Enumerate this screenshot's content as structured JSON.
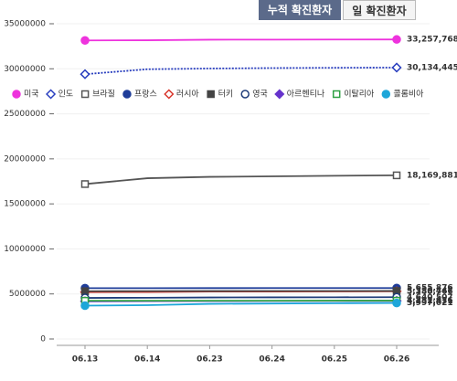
{
  "tabs": [
    "누적 확진환자",
    "일 확진환자"
  ],
  "chart_data": {
    "type": "line",
    "categories": [
      "06.13",
      "06.14",
      "06.23",
      "06.24",
      "06.25",
      "06.26"
    ],
    "ylim": [
      0,
      35000000
    ],
    "yticks": [
      0,
      5000000,
      10000000,
      15000000,
      20000000,
      25000000,
      30000000,
      35000000
    ],
    "grid": true,
    "series": [
      {
        "name": "미국",
        "color": "#ee33dd",
        "marker": "circle",
        "filled": true,
        "dotted": false,
        "values": [
          33150000,
          33170000,
          33230000,
          33240000,
          33250000,
          33257768
        ],
        "value_labels": [
          null,
          null,
          null,
          null,
          null,
          "33,257,768"
        ]
      },
      {
        "name": "인도",
        "color": "#2a3fbf",
        "marker": "diamond",
        "filled": false,
        "dotted": true,
        "values": [
          29400000,
          29950000,
          30030000,
          30080000,
          30110000,
          30134445
        ],
        "value_labels": [
          null,
          null,
          null,
          null,
          null,
          "30,134,445"
        ]
      },
      {
        "name": "브라질",
        "color": "#555555",
        "marker": "square",
        "filled": false,
        "dotted": false,
        "values": [
          17200000,
          17850000,
          18000000,
          18060000,
          18120000,
          18169881
        ],
        "value_labels": [
          null,
          null,
          null,
          null,
          null,
          "18,169,881"
        ]
      },
      {
        "name": "프랑스",
        "color": "#1f3d99",
        "marker": "circle",
        "filled": true,
        "dotted": false,
        "values": [
          5640000,
          5645000,
          5650000,
          5652000,
          5654000,
          5655876
        ],
        "value_labels": [
          null,
          null,
          null,
          null,
          null,
          "5,655,876"
        ]
      },
      {
        "name": "러시아",
        "color": "#d9352b",
        "marker": "diamond",
        "filled": false,
        "dotted": false,
        "values": [
          5200000,
          5220000,
          5260000,
          5270000,
          5280000,
          5288766
        ],
        "value_labels": [
          null,
          null,
          null,
          null,
          null,
          "5,288,766"
        ]
      },
      {
        "name": "터키",
        "color": "#444444",
        "marker": "square",
        "filled": true,
        "dotted": false,
        "values": [
          5300000,
          5310000,
          5320000,
          5325000,
          5328000,
          5330447
        ],
        "value_labels": [
          null,
          null,
          null,
          null,
          null,
          "5,330,447"
        ]
      },
      {
        "name": "영국",
        "color": "#1f3d7a",
        "marker": "circle",
        "filled": false,
        "dotted": false,
        "values": [
          4560000,
          4580000,
          4610000,
          4620000,
          4630000,
          4640507
        ],
        "value_labels": [
          null,
          null,
          null,
          null,
          null,
          "4,640,507"
        ]
      },
      {
        "name": "아르헨티나",
        "color": "#6633cc",
        "marker": "diamond",
        "filled": true,
        "dotted": false,
        "values": [
          4180000,
          4195000,
          4210000,
          4220000,
          4226000,
          4231431
        ],
        "value_labels": [
          null,
          null,
          null,
          null,
          null,
          "4,231,431"
        ]
      },
      {
        "name": "이탈리아",
        "color": "#2ea043",
        "marker": "square",
        "filled": false,
        "dotted": false,
        "values": [
          4245000,
          4247000,
          4250000,
          4251000,
          4252000,
          4252976
        ],
        "value_labels": [
          null,
          null,
          null,
          null,
          null,
          "4,252,976"
        ]
      },
      {
        "name": "콜롬비아",
        "color": "#1ea6d9",
        "marker": "circle",
        "filled": true,
        "dotted": false,
        "values": [
          3700000,
          3750000,
          3900000,
          3940000,
          3970000,
          3997021
        ],
        "value_labels": [
          null,
          null,
          null,
          null,
          null,
          "3,997,021"
        ]
      }
    ]
  }
}
